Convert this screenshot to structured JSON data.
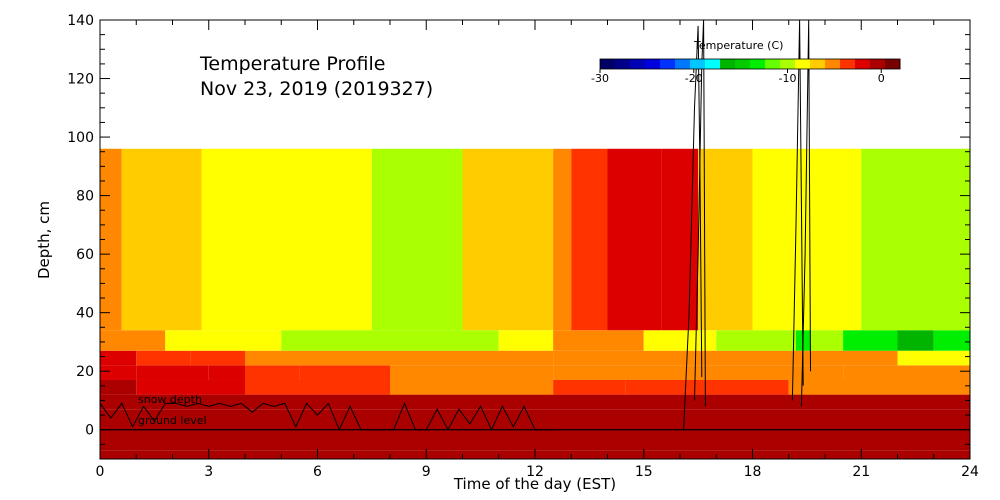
{
  "chart_data": {
    "type": "heatmap",
    "title": "Temperature Profile",
    "subtitle": "Nov 23, 2019 (2019327)",
    "xlabel": "Time of the day (EST)",
    "ylabel": "Depth, cm",
    "xlim": [
      0,
      24
    ],
    "ylim": [
      -10,
      140
    ],
    "x_ticks": [
      0,
      3,
      6,
      9,
      12,
      15,
      18,
      21,
      24
    ],
    "y_ticks": [
      0,
      20,
      40,
      60,
      80,
      100,
      120,
      140
    ],
    "grid": false,
    "colorbar": {
      "title": "Temperature (C)",
      "range": [
        -30,
        2
      ],
      "ticks": [
        -30,
        -20,
        -10,
        0
      ],
      "colors": [
        "#000066",
        "#00008b",
        "#0000b4",
        "#0000dd",
        "#0033ff",
        "#0077ff",
        "#00c8ff",
        "#00ffff",
        "#00b400",
        "#00cc00",
        "#00ee00",
        "#66ff00",
        "#aaff00",
        "#ffff00",
        "#ffcc00",
        "#ff8800",
        "#ff3300",
        "#dd0000",
        "#aa0000",
        "#770000"
      ]
    },
    "layers": [
      {
        "depth": [
          -10,
          -7
        ],
        "segments": [
          [
            0,
            16,
            -1.0
          ],
          [
            16,
            24,
            -0.3
          ]
        ]
      },
      {
        "depth": [
          -7,
          -3
        ],
        "segments": [
          [
            0,
            24,
            -1.0
          ]
        ]
      },
      {
        "depth": [
          -3,
          0
        ],
        "segments": [
          [
            0,
            24,
            -1.2
          ]
        ]
      },
      {
        "depth": [
          0,
          7
        ],
        "segments": [
          [
            0,
            24,
            -0.3
          ]
        ]
      },
      {
        "depth": [
          7,
          12
        ],
        "segments": [
          [
            0,
            24,
            -1.2
          ]
        ]
      },
      {
        "depth": [
          12,
          17
        ],
        "segments": [
          [
            0,
            1,
            -1.2
          ],
          [
            1,
            4,
            -1.5
          ],
          [
            4,
            6,
            -3.5
          ],
          [
            6,
            8,
            -4.0
          ],
          [
            8,
            12.5,
            -4.8
          ],
          [
            12.5,
            14.5,
            -4.0
          ],
          [
            14.5,
            16,
            -3.5
          ],
          [
            16,
            19,
            -4.0
          ],
          [
            19,
            24,
            -4.8
          ]
        ]
      },
      {
        "depth": [
          17,
          22
        ],
        "segments": [
          [
            0,
            1,
            -1.5
          ],
          [
            1,
            3,
            -1.8
          ],
          [
            3,
            4,
            -2.3
          ],
          [
            4,
            5.5,
            -3.8
          ],
          [
            5.5,
            8,
            -4.0
          ],
          [
            8,
            12.5,
            -4.8
          ],
          [
            12.5,
            16,
            -5.0
          ],
          [
            16,
            20.5,
            -5.2
          ],
          [
            20.5,
            24,
            -6.0
          ]
        ]
      },
      {
        "depth": [
          22,
          27
        ],
        "segments": [
          [
            0,
            1,
            -1.8
          ],
          [
            1,
            2,
            -3.0
          ],
          [
            2,
            2.5,
            -3.5
          ],
          [
            2.5,
            4,
            -4.2
          ],
          [
            4,
            12.5,
            -6.0
          ],
          [
            12.5,
            16,
            -4.8
          ],
          [
            16,
            22,
            -6.0
          ],
          [
            22,
            24,
            -8.5
          ]
        ]
      },
      {
        "depth": [
          27,
          34
        ],
        "segments": [
          [
            0,
            1.8,
            -6.0
          ],
          [
            1.8,
            5,
            -8.5
          ],
          [
            5,
            8,
            -9.5
          ],
          [
            8,
            10,
            -10.5
          ],
          [
            10,
            11,
            -9.5
          ],
          [
            11,
            12.5,
            -8.5
          ],
          [
            12.5,
            15,
            -6.0
          ],
          [
            15,
            17,
            -8.5
          ],
          [
            17,
            18,
            -9.5
          ],
          [
            18,
            19.2,
            -10.5
          ],
          [
            19.2,
            19.6,
            -12.5
          ],
          [
            19.6,
            20.5,
            -9.5
          ],
          [
            20.5,
            22,
            -13.0
          ],
          [
            22,
            23,
            -16.5
          ],
          [
            23,
            24,
            -13.0
          ]
        ]
      },
      {
        "depth": [
          34,
          96
        ],
        "segments": [
          [
            0,
            0.6,
            -4.5
          ],
          [
            0.6,
            2.8,
            -6.5
          ],
          [
            2.8,
            7.5,
            -8.0
          ],
          [
            7.5,
            10,
            -9.5
          ],
          [
            10,
            12.5,
            -7.5
          ],
          [
            12.5,
            13,
            -5.0
          ],
          [
            13,
            14,
            -3.0
          ],
          [
            14,
            15.5,
            -1.5
          ],
          [
            15.5,
            16.5,
            -2.5
          ],
          [
            16.5,
            18,
            -7.0
          ],
          [
            18,
            20,
            -8.0
          ],
          [
            20,
            21,
            -9.0
          ],
          [
            21,
            24,
            -9.5
          ]
        ]
      }
    ],
    "snow_depth_label": "snow depth",
    "ground_level_label": "ground level",
    "snow_depth": {
      "x": [
        0,
        0.3,
        0.6,
        0.9,
        1.2,
        1.5,
        1.8,
        2.1,
        2.4,
        2.7,
        3.0,
        3.3,
        3.6,
        3.9,
        4.2,
        4.5,
        4.8,
        5.1,
        5.4,
        5.7,
        6.0,
        6.3,
        6.6,
        6.9,
        7.2,
        7.5,
        7.8,
        8.1,
        8.4,
        8.7,
        9.0,
        9.3,
        9.6,
        9.9,
        10.2,
        10.5,
        10.8,
        11.1,
        11.4,
        11.7,
        12.0,
        12.3,
        12.5
      ],
      "y": [
        9,
        4,
        9,
        1,
        8,
        3,
        9,
        9,
        8,
        9,
        8,
        9,
        8,
        9,
        6,
        9,
        8,
        9,
        1,
        9,
        5,
        9,
        0,
        8,
        0,
        0,
        0,
        0,
        9,
        0,
        0,
        7,
        0,
        7,
        2,
        8,
        0,
        8,
        1,
        8,
        0,
        0,
        0
      ]
    },
    "vertical_lines": [
      {
        "x": [
          16.1,
          16.25,
          16.4,
          16.5,
          16.55,
          16.6
        ],
        "y": [
          0,
          40,
          110,
          138,
          90,
          18
        ]
      },
      {
        "x": [
          16.4,
          16.5,
          16.6,
          16.65,
          16.7
        ],
        "y": [
          10,
          60,
          125,
          140,
          8
        ]
      },
      {
        "x": [
          19.1,
          19.2,
          19.3,
          19.4
        ],
        "y": [
          10,
          70,
          140,
          15
        ]
      },
      {
        "x": [
          19.35,
          19.45,
          19.55,
          19.6
        ],
        "y": [
          8,
          60,
          140,
          20
        ]
      }
    ]
  }
}
